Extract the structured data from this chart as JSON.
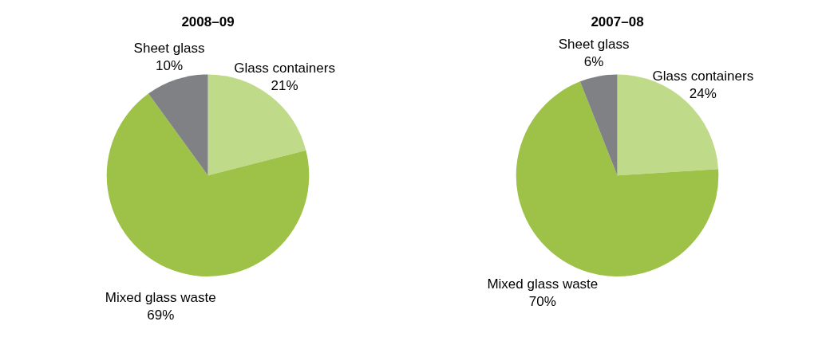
{
  "chart_data": [
    {
      "type": "pie",
      "title": "2008–09",
      "categories": [
        "Glass containers",
        "Mixed glass waste",
        "Sheet glass"
      ],
      "values": [
        21,
        69,
        10
      ],
      "value_labels": [
        "21%",
        "69%",
        "10%"
      ],
      "colors": [
        "#bfda88",
        "#9dc247",
        "#808184"
      ]
    },
    {
      "type": "pie",
      "title": "2007–08",
      "categories": [
        "Glass containers",
        "Mixed glass waste",
        "Sheet glass"
      ],
      "values": [
        24,
        70,
        6
      ],
      "value_labels": [
        "24%",
        "70%",
        "6%"
      ],
      "colors": [
        "#bfda88",
        "#9dc247",
        "#808184"
      ]
    }
  ]
}
